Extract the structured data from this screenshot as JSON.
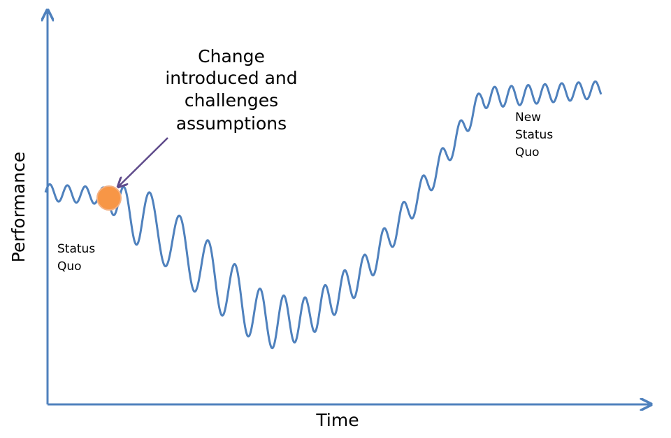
{
  "annotation": {
    "lines": [
      "Change",
      "introduced and",
      "challenges",
      "assumptions"
    ]
  },
  "start_label": {
    "lines": [
      "Status",
      "Quo"
    ]
  },
  "end_label": {
    "lines": [
      "New",
      "Status",
      "Quo"
    ]
  },
  "y_axis_label": "Performance",
  "x_axis_label": "Time"
}
